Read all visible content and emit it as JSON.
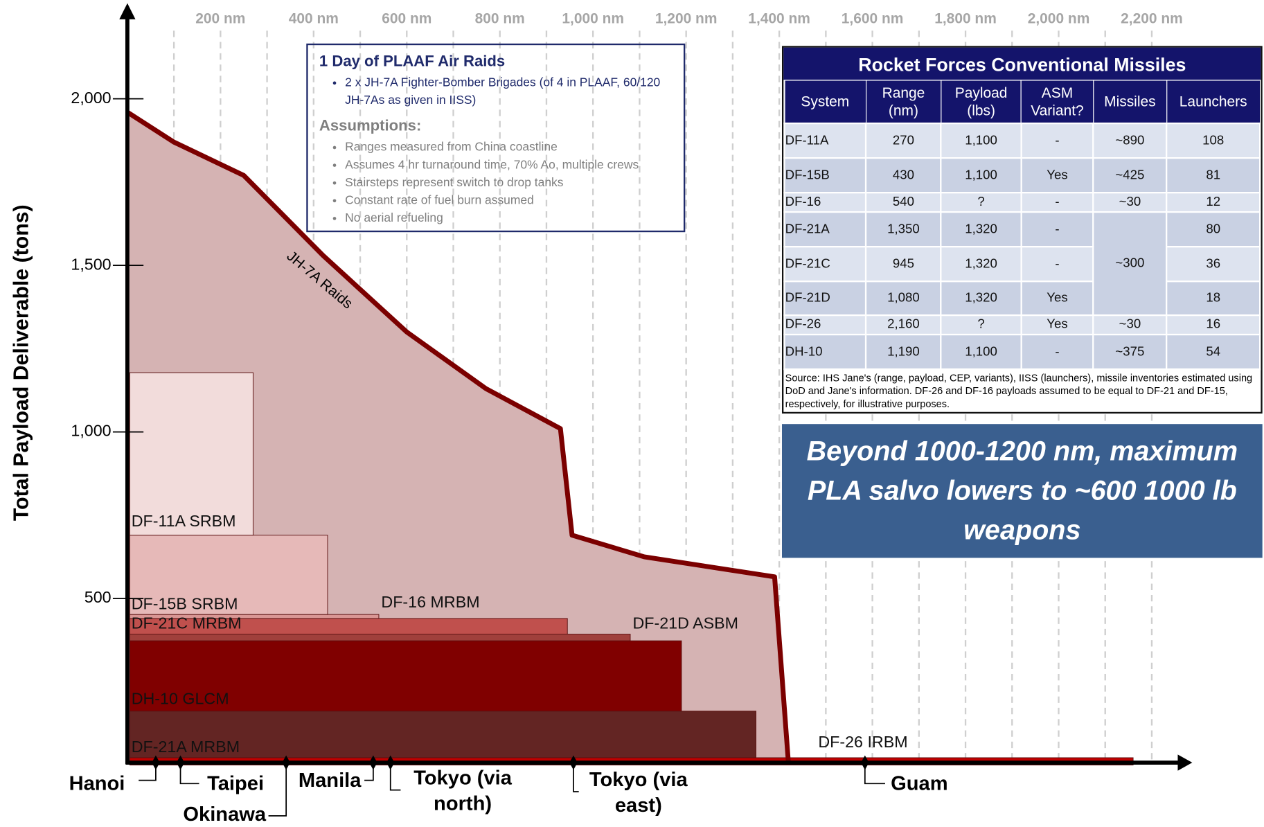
{
  "chart_data": {
    "type": "range-area",
    "y_axis_label": "Total Payload Deliverable (tons)",
    "xlim": [
      0,
      2280
    ],
    "xticks": [
      {
        "value": 200,
        "label": "200 nm"
      },
      {
        "value": 400,
        "label": "400 nm"
      },
      {
        "value": 600,
        "label": "600 nm"
      },
      {
        "value": 800,
        "label": "800 nm"
      },
      {
        "value": 1000,
        "label": "1,000 nm"
      },
      {
        "value": 1200,
        "label": "1,200 nm"
      },
      {
        "value": 1400,
        "label": "1,400 nm"
      },
      {
        "value": 1600,
        "label": "1,600 nm"
      },
      {
        "value": 1800,
        "label": "1,800 nm"
      },
      {
        "value": 2000,
        "label": "2,000 nm"
      },
      {
        "value": 2200,
        "label": "2,200 nm"
      }
    ],
    "x_minor_ticks": [
      100,
      300,
      500,
      700,
      900,
      1100,
      1300,
      1500,
      1700,
      1900,
      2100
    ],
    "ylim": [
      0,
      2270
    ],
    "yticks": [
      500,
      {
        "value": 1000,
        "label": "1,000"
      },
      {
        "value": 1500,
        "label": "1,500"
      },
      {
        "value": 2000,
        "label": "2,000"
      }
    ],
    "grid": true,
    "curve": {
      "name": "JH-7A Raids",
      "color": "#7b0000",
      "fill": "#d5b3b3",
      "x": [
        0,
        100,
        250,
        420,
        600,
        770,
        930,
        955,
        1110,
        1390,
        1420
      ],
      "values": [
        1960,
        1870,
        1770,
        1530,
        1300,
        1130,
        1010,
        690,
        625,
        565,
        0
      ]
    },
    "bands": [
      {
        "name": "DF-26 IRBM",
        "range": 2160,
        "payload": 22,
        "color": "#c00000"
      },
      {
        "name": "DF-21A MRBM",
        "range": 1350,
        "payload": 140,
        "color": "#632523"
      },
      {
        "name": "DH-10 GLCM",
        "range": 1190,
        "payload": 211,
        "color": "#800000"
      },
      {
        "name": "DF-21D ASBM",
        "range": 1080,
        "payload": 20,
        "color": "#a0403c"
      },
      {
        "name": "DF-21C MRBM",
        "range": 945,
        "payload": 47,
        "color": "#c0504d"
      },
      {
        "name": "DF-16 MRBM",
        "range": 540,
        "payload": 12,
        "color": "#d99694"
      },
      {
        "name": "DF-15B SRBM",
        "range": 430,
        "payload": 238,
        "color": "#e6b9b8"
      },
      {
        "name": "DF-11A SRBM",
        "range": 270,
        "payload": 488,
        "color": "#f2dcdb"
      }
    ],
    "cities": [
      {
        "name": "Hanoi",
        "x": 61
      },
      {
        "name": "Taipei",
        "x": 114
      },
      {
        "name": "Okinawa",
        "x": 341
      },
      {
        "name": "Manila",
        "x": 528
      },
      {
        "name": "Tokyo (via north)",
        "x": 565
      },
      {
        "name": "Tokyo (via east)",
        "x": 958
      },
      {
        "name": "Guam",
        "x": 1584
      }
    ]
  },
  "info_box": {
    "title": "1 Day of PLAAF Air Raids",
    "bullets": [
      "2 x JH-7A Fighter-Bomber Brigades (of 4 in PLAAF, 60/120 JH-7As as given in IISS)"
    ],
    "assumptions_title": "Assumptions:",
    "assumptions": [
      "Ranges measured from China coastline",
      "Assumes 4 hr turnaround time, 70% Ao, multiple crews",
      "Stairsteps represent switch to drop tanks",
      "Constant rate of fuel burn assumed",
      "No aerial refueling"
    ]
  },
  "table": {
    "title": "Rocket Forces Conventional Missiles",
    "columns": [
      "System",
      "Range (nm)",
      "Payload (lbs)",
      "ASM Variant?",
      "Missiles",
      "Launchers"
    ],
    "rows": [
      [
        "DF-11A",
        "270",
        "1,100",
        "-",
        "~890",
        "108"
      ],
      [
        "DF-15B",
        "430",
        "1,100",
        "Yes",
        "~425",
        "81"
      ],
      [
        "DF-16",
        "540",
        "?",
        "-",
        "~30",
        "12"
      ],
      [
        "DF-21A",
        "1,350",
        "1,320",
        "-",
        "~300",
        "80"
      ],
      [
        "DF-21C",
        "945",
        "1,320",
        "-",
        null,
        "36"
      ],
      [
        "DF-21D",
        "1,080",
        "1,320",
        "Yes",
        null,
        "18"
      ],
      [
        "DF-26",
        "2,160",
        "?",
        "Yes",
        "~30",
        "16"
      ],
      [
        "DH-10",
        "1,190",
        "1,100",
        "-",
        "~375",
        "54"
      ]
    ],
    "source": "Source: IHS Jane's (range, payload, CEP, variants), IISS (launchers), missile inventories estimated using DoD and Jane's information. DF-26 and DF-16 payloads assumed to be equal to DF-21 and DF-15, respectively, for illustrative purposes."
  },
  "callout": "Beyond 1000-1200 nm, maximum PLA salvo lowers to ~600 1000 lb weapons"
}
